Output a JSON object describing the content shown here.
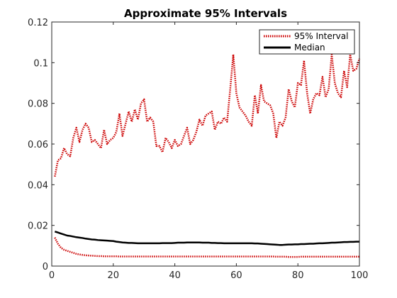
{
  "chart_data": {
    "type": "line",
    "title": "Approximate 95% Intervals",
    "xlabel": "",
    "ylabel": "",
    "xlim": [
      0,
      100
    ],
    "ylim": [
      0,
      0.12
    ],
    "x_ticks": [
      0,
      20,
      40,
      60,
      80,
      100
    ],
    "x_tick_labels": [
      "0",
      "20",
      "40",
      "60",
      "80",
      "100"
    ],
    "y_ticks": [
      0,
      0.02,
      0.04,
      0.06,
      0.08,
      0.1,
      0.12
    ],
    "y_tick_labels": [
      "0",
      "0.02",
      "0.04",
      "0.06",
      "0.08",
      "0.1",
      "0.12"
    ],
    "grid": false,
    "legend_position": "top-right",
    "x": [
      1,
      2,
      3,
      4,
      5,
      6,
      7,
      8,
      9,
      10,
      11,
      12,
      13,
      14,
      15,
      16,
      17,
      18,
      19,
      20,
      21,
      22,
      23,
      24,
      25,
      26,
      27,
      28,
      29,
      30,
      31,
      32,
      33,
      34,
      35,
      36,
      37,
      38,
      39,
      40,
      41,
      42,
      43,
      44,
      45,
      46,
      47,
      48,
      49,
      50,
      51,
      52,
      53,
      54,
      55,
      56,
      57,
      58,
      59,
      60,
      61,
      62,
      63,
      64,
      65,
      66,
      67,
      68,
      69,
      70,
      71,
      72,
      73,
      74,
      75,
      76,
      77,
      78,
      79,
      80,
      81,
      82,
      83,
      84,
      85,
      86,
      87,
      88,
      89,
      90,
      91,
      92,
      93,
      94,
      95,
      96,
      97,
      98,
      99,
      100
    ],
    "series": [
      {
        "name": "95% Interval",
        "color": "#cc0000",
        "style": "dotted",
        "legend": true,
        "values": [
          0.044,
          0.052,
          0.053,
          0.058,
          0.055,
          0.054,
          0.063,
          0.068,
          0.061,
          0.067,
          0.07,
          0.068,
          0.061,
          0.062,
          0.06,
          0.058,
          0.067,
          0.06,
          0.062,
          0.063,
          0.066,
          0.075,
          0.064,
          0.07,
          0.076,
          0.071,
          0.077,
          0.072,
          0.08,
          0.082,
          0.071,
          0.073,
          0.071,
          0.059,
          0.059,
          0.056,
          0.063,
          0.061,
          0.058,
          0.062,
          0.059,
          0.06,
          0.064,
          0.068,
          0.06,
          0.062,
          0.066,
          0.072,
          0.069,
          0.074,
          0.075,
          0.076,
          0.067,
          0.071,
          0.07,
          0.073,
          0.071,
          0.087,
          0.104,
          0.085,
          0.078,
          0.076,
          0.074,
          0.071,
          0.069,
          0.084,
          0.075,
          0.089,
          0.081,
          0.08,
          0.079,
          0.075,
          0.063,
          0.071,
          0.069,
          0.073,
          0.087,
          0.081,
          0.078,
          0.09,
          0.089,
          0.101,
          0.085,
          0.075,
          0.082,
          0.085,
          0.084,
          0.093,
          0.083,
          0.087,
          0.104,
          0.09,
          0.085,
          0.083,
          0.096,
          0.088,
          0.104,
          0.096,
          0.097,
          0.102
        ]
      },
      {
        "name": "95% Interval",
        "color": "#cc0000",
        "style": "dotted",
        "legend": false,
        "values": [
          0.014,
          0.011,
          0.009,
          0.008,
          0.0075,
          0.007,
          0.0065,
          0.006,
          0.0057,
          0.0055,
          0.0053,
          0.0052,
          0.0051,
          0.005,
          0.0049,
          0.0049,
          0.0048,
          0.0048,
          0.0048,
          0.0048,
          0.0048,
          0.0047,
          0.0047,
          0.0047,
          0.0047,
          0.0047,
          0.0047,
          0.0047,
          0.0047,
          0.0047,
          0.0047,
          0.0047,
          0.0047,
          0.0047,
          0.0047,
          0.0047,
          0.0047,
          0.0047,
          0.0047,
          0.0047,
          0.0047,
          0.0047,
          0.0047,
          0.0047,
          0.0047,
          0.0047,
          0.0047,
          0.0047,
          0.0047,
          0.0047,
          0.0047,
          0.0047,
          0.0047,
          0.0047,
          0.0047,
          0.0047,
          0.0047,
          0.0047,
          0.0047,
          0.0047,
          0.0047,
          0.0047,
          0.0047,
          0.0047,
          0.0047,
          0.0047,
          0.0047,
          0.0047,
          0.0047,
          0.0047,
          0.0047,
          0.0047,
          0.0046,
          0.0046,
          0.0046,
          0.0046,
          0.0045,
          0.0045,
          0.0045,
          0.0045,
          0.0046,
          0.0046,
          0.0046,
          0.0046,
          0.0046,
          0.0046,
          0.0046,
          0.0046,
          0.0046,
          0.0046,
          0.0046,
          0.0046,
          0.0046,
          0.0046,
          0.0046,
          0.0046,
          0.0046,
          0.0046,
          0.0046,
          0.0046
        ]
      },
      {
        "name": "Median",
        "color": "#000000",
        "style": "solid",
        "legend": true,
        "values": [
          0.017,
          0.0165,
          0.016,
          0.0155,
          0.015,
          0.0148,
          0.0145,
          0.0142,
          0.014,
          0.0138,
          0.0135,
          0.0133,
          0.0131,
          0.013,
          0.0128,
          0.0127,
          0.0126,
          0.0125,
          0.0124,
          0.0123,
          0.012,
          0.0118,
          0.0116,
          0.0115,
          0.0114,
          0.0114,
          0.0113,
          0.0112,
          0.0112,
          0.0112,
          0.0112,
          0.0112,
          0.0112,
          0.0112,
          0.0112,
          0.0113,
          0.0113,
          0.0113,
          0.0113,
          0.0114,
          0.0115,
          0.0115,
          0.0115,
          0.0116,
          0.0116,
          0.0116,
          0.0116,
          0.0116,
          0.0115,
          0.0115,
          0.0115,
          0.0114,
          0.0114,
          0.0113,
          0.0113,
          0.0112,
          0.0112,
          0.0112,
          0.0112,
          0.0112,
          0.0112,
          0.0112,
          0.0112,
          0.0112,
          0.0112,
          0.0111,
          0.0111,
          0.011,
          0.0109,
          0.0108,
          0.0107,
          0.0106,
          0.0105,
          0.0104,
          0.0104,
          0.0105,
          0.0106,
          0.0106,
          0.0107,
          0.0107,
          0.0108,
          0.0108,
          0.0109,
          0.011,
          0.011,
          0.0111,
          0.0112,
          0.0112,
          0.0113,
          0.0114,
          0.0115,
          0.0115,
          0.0116,
          0.0117,
          0.0118,
          0.0118,
          0.0119,
          0.0119,
          0.012,
          0.012
        ]
      }
    ]
  }
}
